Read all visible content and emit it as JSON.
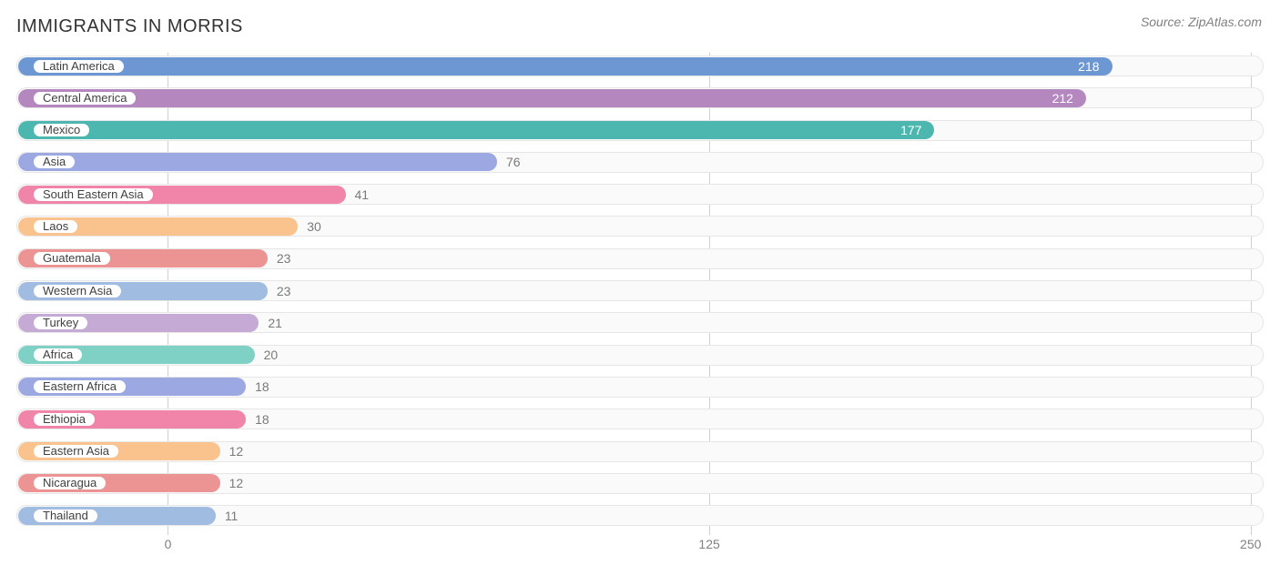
{
  "title": "IMMIGRANTS IN MORRIS",
  "source": "Source: ZipAtlas.com",
  "chart": {
    "type": "bar",
    "background_color": "#ffffff",
    "track_color": "#fafafa",
    "track_border": "#e6e6e6",
    "grid_color": "#d0d0d0",
    "text_color": "#7a7a7a",
    "title_color": "#333333",
    "xlim": [
      -35,
      253
    ],
    "ticks": [
      0,
      125,
      250
    ],
    "bars": [
      {
        "label": "Latin America",
        "value": 218,
        "color": "#6c97d3",
        "value_color": "#ffffff"
      },
      {
        "label": "Central America",
        "value": 212,
        "color": "#b587bf",
        "value_color": "#ffffff"
      },
      {
        "label": "Mexico",
        "value": 177,
        "color": "#4bb7af",
        "value_color": "#ffffff"
      },
      {
        "label": "Asia",
        "value": 76,
        "color": "#9ca8e2",
        "value_color": "#7a7a7a"
      },
      {
        "label": "South Eastern Asia",
        "value": 41,
        "color": "#f185a9",
        "value_color": "#7a7a7a"
      },
      {
        "label": "Laos",
        "value": 30,
        "color": "#fac38d",
        "value_color": "#7a7a7a"
      },
      {
        "label": "Guatemala",
        "value": 23,
        "color": "#ec9393",
        "value_color": "#7a7a7a"
      },
      {
        "label": "Western Asia",
        "value": 23,
        "color": "#a0bce0",
        "value_color": "#7a7a7a"
      },
      {
        "label": "Turkey",
        "value": 21,
        "color": "#c4aad5",
        "value_color": "#7a7a7a"
      },
      {
        "label": "Africa",
        "value": 20,
        "color": "#7fd1c5",
        "value_color": "#7a7a7a"
      },
      {
        "label": "Eastern Africa",
        "value": 18,
        "color": "#9ca8e2",
        "value_color": "#7a7a7a"
      },
      {
        "label": "Ethiopia",
        "value": 18,
        "color": "#f185a9",
        "value_color": "#7a7a7a"
      },
      {
        "label": "Eastern Asia",
        "value": 12,
        "color": "#fac38d",
        "value_color": "#7a7a7a"
      },
      {
        "label": "Nicaragua",
        "value": 12,
        "color": "#ec9393",
        "value_color": "#7a7a7a"
      },
      {
        "label": "Thailand",
        "value": 11,
        "color": "#a0bce0",
        "value_color": "#7a7a7a"
      }
    ]
  }
}
